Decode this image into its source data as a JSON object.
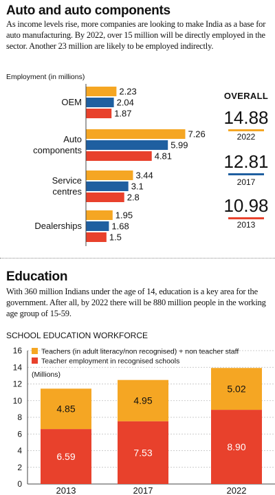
{
  "auto": {
    "title": "Auto and auto components",
    "description": "As income levels rise, more companies are looking to make India as a base for auto manufacturing. By 2022, over 15 million will be directly employed in the sector. Another 23 million are likely to be employed indirectly.",
    "unit_label": "Employment (in millions)",
    "overall_label": "OVERALL",
    "overall": [
      {
        "value": "14.88",
        "year": "2022",
        "color": "#f5a623"
      },
      {
        "value": "12.81",
        "year": "2017",
        "color": "#1f5fa0"
      },
      {
        "value": "10.98",
        "year": "2013",
        "color": "#e8412c"
      }
    ]
  },
  "education": {
    "title": "Education",
    "description": "With 360 million Indians under the age of 14, education is a key area for the government. After all, by 2022 there will be 880 million people in the working age group of 15-59.",
    "chart_title": "SCHOOL EDUCATION WORKFORCE"
  },
  "colors": {
    "2022": "#f5a623",
    "2017": "#1f5fa0",
    "2013": "#e8412c"
  },
  "chart_data": [
    {
      "type": "bar",
      "orientation": "horizontal",
      "title": "Employment (in millions)",
      "categories": [
        "OEM",
        "Auto components",
        "Service centres",
        "Dealerships"
      ],
      "category_lines": [
        [
          "OEM"
        ],
        [
          "Auto",
          "components"
        ],
        [
          "Service",
          "centres"
        ],
        [
          "Dealerships"
        ]
      ],
      "series": [
        {
          "year": "2022",
          "values": [
            2.23,
            7.26,
            3.44,
            1.95
          ]
        },
        {
          "year": "2017",
          "values": [
            2.04,
            5.99,
            3.1,
            1.68
          ]
        },
        {
          "year": "2013",
          "values": [
            1.87,
            4.81,
            2.8,
            1.5
          ]
        }
      ],
      "value_labels": [
        [
          "2.23",
          "7.26",
          "3.44",
          "1.95"
        ],
        [
          "2.04",
          "5.99",
          "3.1",
          "1.68"
        ],
        [
          "1.87",
          "4.81",
          "2.8",
          "1.5"
        ]
      ],
      "xlim": [
        0,
        8
      ]
    },
    {
      "type": "bar",
      "stacked": true,
      "title": "SCHOOL EDUCATION WORKFORCE",
      "ylabel": "(Millions)",
      "ylim": [
        0,
        16
      ],
      "yticks": [
        0,
        2,
        4,
        6,
        8,
        10,
        12,
        14,
        16
      ],
      "categories": [
        "2013",
        "2017",
        "2022"
      ],
      "series": [
        {
          "name": "Teacher employment in recognised schools",
          "values": [
            6.59,
            7.53,
            8.9
          ],
          "labels": [
            "6.59",
            "7.53",
            "8.90"
          ],
          "color": "#e8412c"
        },
        {
          "name": "Teachers (in adult literacy/non recognised) + non teacher staff",
          "values": [
            4.85,
            4.95,
            5.02
          ],
          "labels": [
            "4.85",
            "4.95",
            "5.02"
          ],
          "color": "#f5a623"
        }
      ],
      "grid": true,
      "legend": "top-left"
    }
  ]
}
